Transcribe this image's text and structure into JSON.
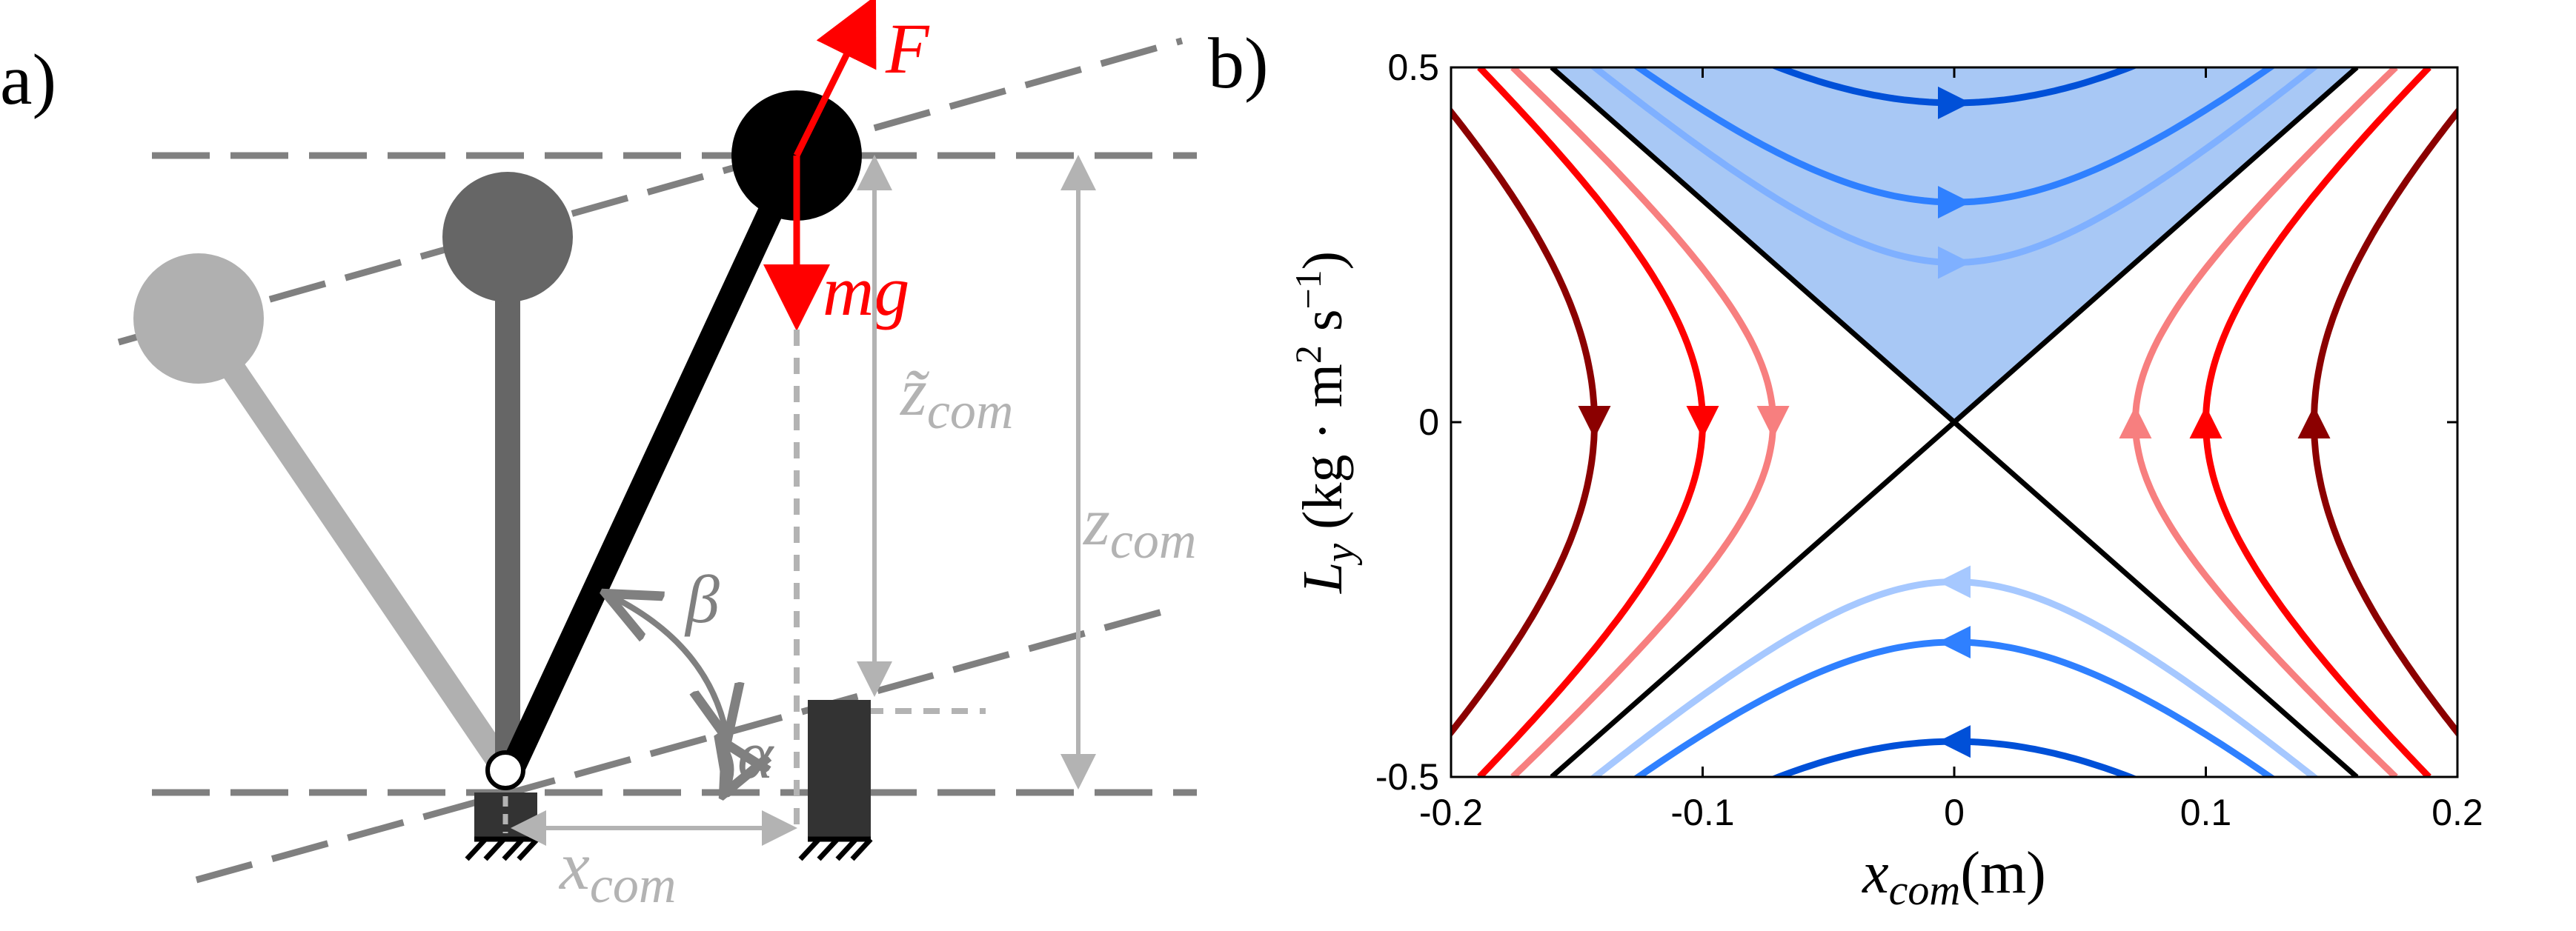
{
  "panel_a": {
    "label": "a)",
    "force_label": "F",
    "weight_label": "mg",
    "ztilde_label": "z̃",
    "ztilde_sub": "com",
    "z_label": "z",
    "z_sub": "com",
    "beta_label": "β",
    "alpha_label": "α",
    "x_label": "x",
    "x_sub": "com",
    "colors": {
      "force": "#ff0000",
      "pendulum_dark": "#000000",
      "pendulum_mid": "#666666",
      "pendulum_light": "#b0b0b0",
      "guides": "#808080",
      "dimension": "#b3b3b3"
    }
  },
  "panel_b": {
    "label": "b)",
    "xlabel_main": "x",
    "xlabel_sub": "com",
    "xlabel_unit": "(m)",
    "ylabel_main": "L",
    "ylabel_sub": "y",
    "ylabel_unit": "(kg · m",
    "ylabel_sup1": "2",
    "ylabel_unit2": " s",
    "ylabel_sup2": "−1",
    "ylabel_close": ")",
    "xticks": [
      "-0.2",
      "-0.1",
      "0",
      "0.1",
      "0.2"
    ],
    "yticks": [
      "-0.5",
      "0",
      "0.5"
    ]
  },
  "chart_data": {
    "type": "line",
    "xlim": [
      -0.2,
      0.2
    ],
    "ylim": [
      -0.5,
      0.5
    ],
    "grid": false,
    "shaded_region": {
      "description_color": "#a8c8f5",
      "bounds": "L_y >= 3.125*|x|"
    },
    "separatrices": [
      {
        "slope": 3.125,
        "color": "#000000"
      },
      {
        "slope": -3.125,
        "color": "#000000"
      }
    ],
    "blue_trajectories": [
      {
        "L_at_x0": 0.45,
        "color": "#0050d8",
        "arrow": "right"
      },
      {
        "L_at_x0": 0.31,
        "color": "#2f80ff",
        "arrow": "right"
      },
      {
        "L_at_x0": 0.225,
        "color": "#7fb0ff",
        "arrow": "right"
      },
      {
        "L_at_x0": -0.45,
        "color": "#0050d8",
        "arrow": "left"
      },
      {
        "L_at_x0": -0.31,
        "color": "#2f80ff",
        "arrow": "left"
      },
      {
        "L_at_x0": -0.225,
        "color": "#a6c8ff",
        "arrow": "left"
      }
    ],
    "red_trajectories": [
      {
        "x_at_L0": -0.143,
        "color": "#8b0000",
        "arrow": "down"
      },
      {
        "x_at_L0": -0.1,
        "color": "#ff0000",
        "arrow": "down"
      },
      {
        "x_at_L0": -0.072,
        "color": "#f77f7f",
        "arrow": "down"
      },
      {
        "x_at_L0": 0.072,
        "color": "#f77f7f",
        "arrow": "up"
      },
      {
        "x_at_L0": 0.1,
        "color": "#ff0000",
        "arrow": "up"
      },
      {
        "x_at_L0": 0.143,
        "color": "#8b0000",
        "arrow": "up"
      }
    ]
  }
}
